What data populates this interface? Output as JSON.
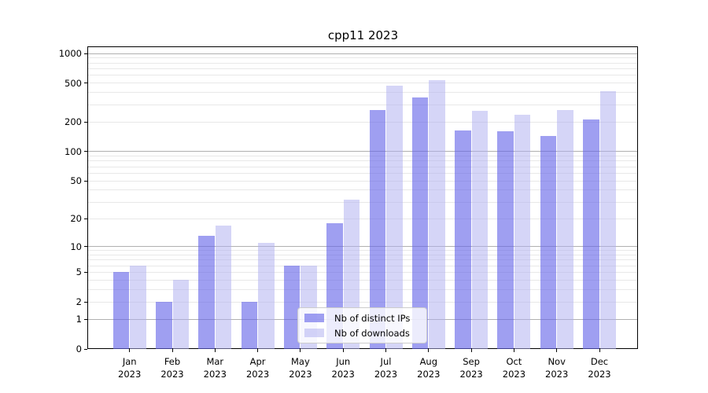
{
  "window": {
    "background": "#ffffff"
  },
  "chart_data": {
    "type": "bar",
    "title": "cpp11 2023",
    "xlabel": "",
    "ylabel": "",
    "year": "2023",
    "categories_months": [
      "Jan",
      "Feb",
      "Mar",
      "Apr",
      "May",
      "Jun",
      "Jul",
      "Aug",
      "Sep",
      "Oct",
      "Nov",
      "Dec"
    ],
    "series": [
      {
        "name": "Nb of distinct IPs",
        "key": "distinct-ips",
        "color": "#6464e8",
        "alpha": 0.62,
        "values": [
          5,
          2,
          13,
          2,
          6,
          18,
          268,
          355,
          164,
          160,
          145,
          213
        ]
      },
      {
        "name": "Nb of downloads",
        "key": "downloads",
        "color": "#afaff0",
        "alpha": 0.52,
        "values": [
          6,
          4,
          17,
          11,
          6,
          32,
          468,
          540,
          260,
          240,
          267,
          412
        ]
      }
    ],
    "yscale": "log1p",
    "yticks": [
      0,
      1,
      2,
      5,
      10,
      20,
      50,
      100,
      200,
      500,
      1000
    ],
    "ylim": [
      0,
      1160
    ],
    "grid": "major-and-minor-horizontal",
    "legend": {
      "position": "lower-center",
      "entries": [
        "Nb of distinct IPs",
        "Nb of downloads"
      ]
    },
    "colors": {
      "major_grid": "#b0b0b0",
      "minor_grid": "#e8e8e8",
      "spine": "#000000"
    }
  }
}
